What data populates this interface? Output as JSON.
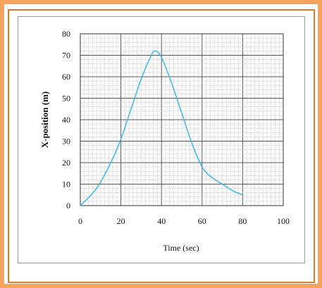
{
  "chart_data": {
    "type": "line",
    "xlabel": "Time (sec)",
    "ylabel": "X-position (m)",
    "xlim": [
      0,
      100
    ],
    "ylim": [
      0,
      80
    ],
    "x_ticks": [
      "0",
      "20",
      "40",
      "60",
      "80",
      "100"
    ],
    "y_ticks": [
      "0",
      "10",
      "20",
      "30",
      "40",
      "50",
      "60",
      "70",
      "80"
    ],
    "grid": true,
    "series": [
      {
        "color": "#3fb7e6",
        "x": [
          0,
          8,
          15,
          20,
          25,
          30,
          35,
          37,
          40,
          45,
          50,
          55,
          60,
          65,
          70,
          75,
          80
        ],
        "y": [
          0,
          8,
          20,
          31,
          45,
          59,
          70,
          72,
          69,
          57,
          43,
          29,
          18,
          13,
          10,
          7,
          5
        ]
      }
    ]
  },
  "colors": {
    "frame_outer": "#f7a35c",
    "frame_inner": "#e07b2a",
    "grid_major": "#555555",
    "grid_minor": "#b8b8b8"
  }
}
